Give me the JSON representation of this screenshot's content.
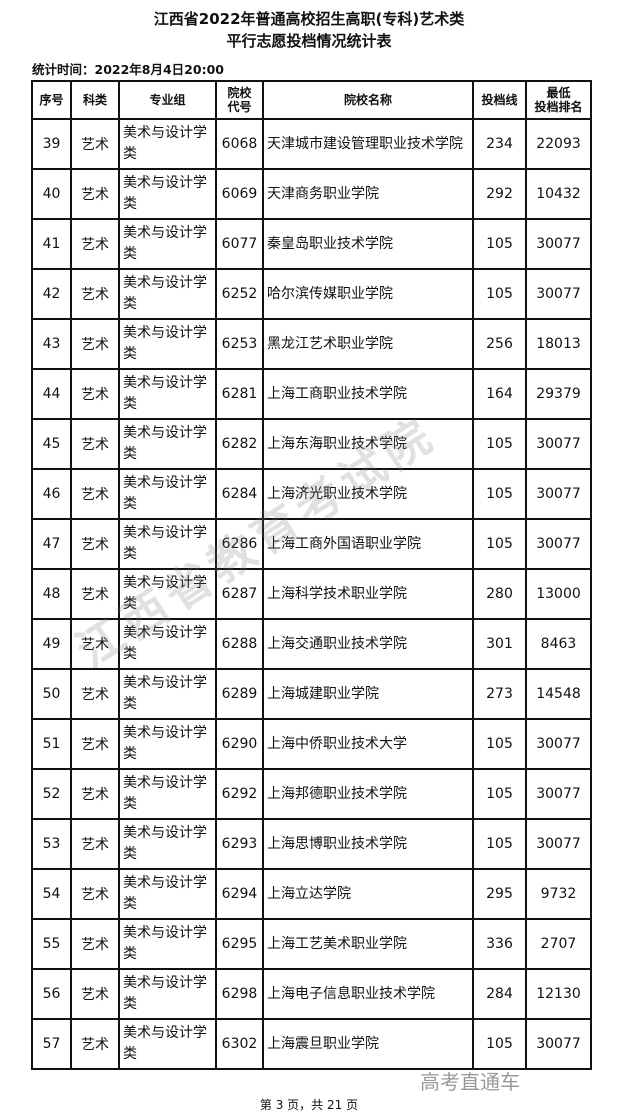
{
  "title_line1": "江西省2022年普通高校招生高职(专科)艺术类",
  "title_line2": "平行志愿投档情况统计表",
  "stat_time": "统计时间：2022年8月4日20:00",
  "headers": [
    "序号",
    "科类",
    "专业组",
    "院校\n代号",
    "院校名称",
    "投档线",
    "最低\n投档排名"
  ],
  "rows": [
    [
      "39",
      "艺术",
      "美术与设计学类",
      "6068",
      "天津城市建设管理职业技术学院",
      "234",
      "22093"
    ],
    [
      "40",
      "艺术",
      "美术与设计学类",
      "6069",
      "天津商务职业学院",
      "292",
      "10432"
    ],
    [
      "41",
      "艺术",
      "美术与设计学类",
      "6077",
      "秦皇岛职业技术学院",
      "105",
      "30077"
    ],
    [
      "42",
      "艺术",
      "美术与设计学类",
      "6252",
      "哈尔滨传媒职业学院",
      "105",
      "30077"
    ],
    [
      "43",
      "艺术",
      "美术与设计学类",
      "6253",
      "黑龙江艺术职业学院",
      "256",
      "18013"
    ],
    [
      "44",
      "艺术",
      "美术与设计学类",
      "6281",
      "上海工商职业技术学院",
      "164",
      "29379"
    ],
    [
      "45",
      "艺术",
      "美术与设计学类",
      "6282",
      "上海东海职业技术学院",
      "105",
      "30077"
    ],
    [
      "46",
      "艺术",
      "美术与设计学类",
      "6284",
      "上海济光职业技术学院",
      "105",
      "30077"
    ],
    [
      "47",
      "艺术",
      "美术与设计学类",
      "6286",
      "上海工商外国语职业学院",
      "105",
      "30077"
    ],
    [
      "48",
      "艺术",
      "美术与设计学类",
      "6287",
      "上海科学技术职业学院",
      "280",
      "13000"
    ],
    [
      "49",
      "艺术",
      "美术与设计学类",
      "6288",
      "上海交通职业技术学院",
      "301",
      "8463"
    ],
    [
      "50",
      "艺术",
      "美术与设计学类",
      "6289",
      "上海城建职业学院",
      "273",
      "14548"
    ],
    [
      "51",
      "艺术",
      "美术与设计学类",
      "6290",
      "上海中侨职业技术大学",
      "105",
      "30077"
    ],
    [
      "52",
      "艺术",
      "美术与设计学类",
      "6292",
      "上海邦德职业技术学院",
      "105",
      "30077"
    ],
    [
      "53",
      "艺术",
      "美术与设计学类",
      "6293",
      "上海思博职业技术学院",
      "105",
      "30077"
    ],
    [
      "54",
      "艺术",
      "美术与设计学类",
      "6294",
      "上海立达学院",
      "295",
      "9732"
    ],
    [
      "55",
      "艺术",
      "美术与设计学类",
      "6295",
      "上海工艺美术职业学院",
      "336",
      "2707"
    ],
    [
      "56",
      "艺术",
      "美术与设计学类",
      "6298",
      "上海电子信息职业技术学院",
      "284",
      "12130"
    ],
    [
      "57",
      "艺术",
      "美术与设计学类",
      "6302",
      "上海震旦职业学院",
      "105",
      "30077"
    ]
  ],
  "watermark": "江西省教育考试院",
  "watermark_corner": "高考直通车",
  "footer": "第 3 页，共 21 页"
}
